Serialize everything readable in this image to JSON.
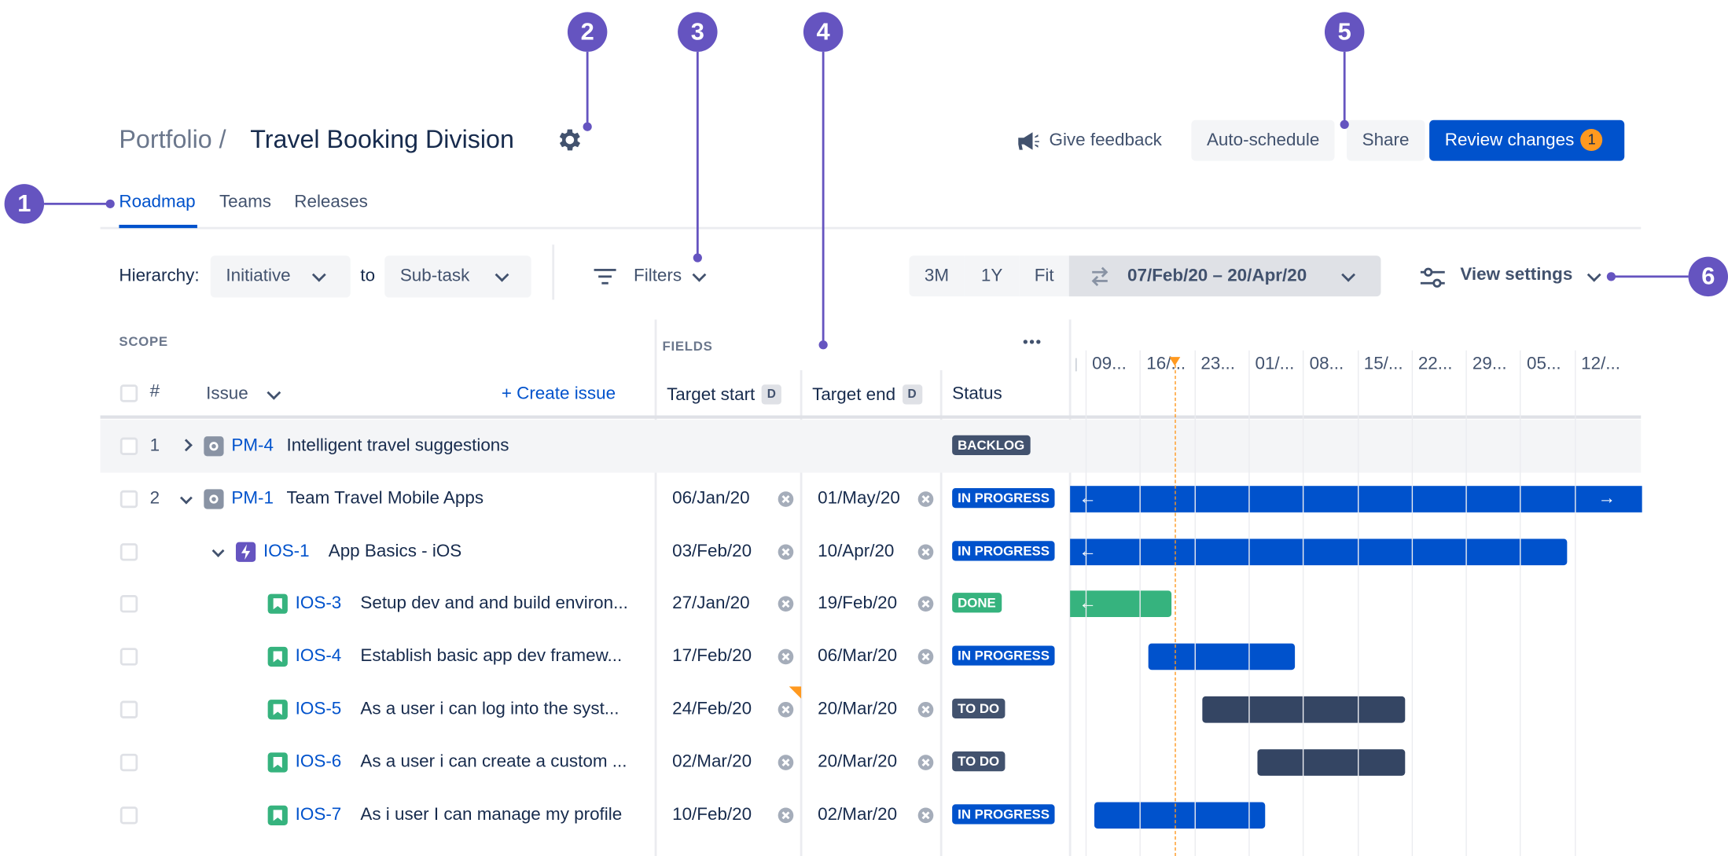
{
  "header": {
    "breadcrumb": "Portfolio /",
    "title": "Travel Booking Division",
    "actions": {
      "feedback": "Give feedback",
      "auto_schedule": "Auto-schedule",
      "share": "Share",
      "review": "Review changes",
      "review_count": "1"
    }
  },
  "tabs": [
    "Roadmap",
    "Teams",
    "Releases"
  ],
  "toolbar": {
    "hierarchy_label": "Hierarchy:",
    "hierarchy_from": "Initiative",
    "to_label": "to",
    "hierarchy_to": "Sub-task",
    "filters": "Filters",
    "zoom": [
      "3M",
      "1Y",
      "Fit"
    ],
    "date_range": "07/Feb/20 – 20/Apr/20",
    "view_settings": "View settings"
  },
  "table": {
    "scope_heading": "SCOPE",
    "fields_heading": "FIELDS",
    "more": "•••",
    "number_header": "#",
    "issue_header": "Issue",
    "create_issue": "+ Create issue",
    "target_start": "Target start",
    "target_end": "Target end",
    "date_badge": "D",
    "status": "Status"
  },
  "timeline": {
    "columns": [
      "09...",
      "16/...",
      "23...",
      "01/...",
      "08...",
      "15/...",
      "22...",
      "29...",
      "05...",
      "12/..."
    ]
  },
  "rows": [
    {
      "num": "1",
      "key": "PM-4",
      "summary": "Intelligent travel suggestions",
      "start": "",
      "end": "",
      "status": "BACKLOG"
    },
    {
      "num": "2",
      "key": "PM-1",
      "summary": "Team Travel Mobile Apps",
      "start": "06/Jan/20",
      "end": "01/May/20",
      "status": "IN PROGRESS"
    },
    {
      "num": "",
      "key": "IOS-1",
      "summary": "App Basics - iOS",
      "start": "03/Feb/20",
      "end": "10/Apr/20",
      "status": "IN PROGRESS"
    },
    {
      "num": "",
      "key": "IOS-3",
      "summary": "Setup dev and and build environ...",
      "start": "27/Jan/20",
      "end": "19/Feb/20",
      "status": "DONE"
    },
    {
      "num": "",
      "key": "IOS-4",
      "summary": "Establish basic app dev framew...",
      "start": "17/Feb/20",
      "end": "06/Mar/20",
      "status": "IN PROGRESS"
    },
    {
      "num": "",
      "key": "IOS-5",
      "summary": "As a user i can log into the syst...",
      "start": "24/Feb/20",
      "end": "20/Mar/20",
      "status": "TO DO"
    },
    {
      "num": "",
      "key": "IOS-6",
      "summary": "As a user i can create a custom ...",
      "start": "02/Mar/20",
      "end": "20/Mar/20",
      "status": "TO DO"
    },
    {
      "num": "",
      "key": "IOS-7",
      "summary": "As i user I can manage my profile",
      "start": "10/Feb/20",
      "end": "02/Mar/20",
      "status": "IN PROGRESS"
    }
  ],
  "callouts": [
    "1",
    "2",
    "3",
    "4",
    "5",
    "6"
  ],
  "colors": {
    "primary": "#0052CC",
    "callout": "#6554C0",
    "done": "#36B37E",
    "todo": "#42526E",
    "story_icon": "#36B37E",
    "epic_icon": "#6554C0",
    "initiative_icon": "#8993A4",
    "today_marker": "#FF991F"
  }
}
